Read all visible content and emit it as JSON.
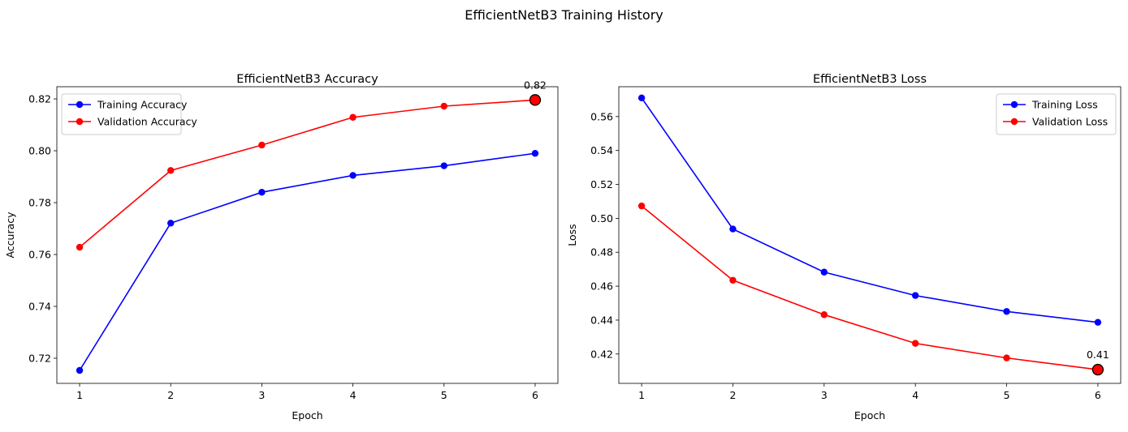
{
  "figure": {
    "title": "EfficientNetB3 Training History"
  },
  "chart_data": [
    {
      "type": "line",
      "title": "EfficientNetB3 Accuracy",
      "xlabel": "Epoch",
      "ylabel": "Accuracy",
      "x": [
        1,
        2,
        3,
        4,
        5,
        6
      ],
      "xticks": [
        "1",
        "2",
        "3",
        "4",
        "5",
        "6"
      ],
      "xlim": [
        0.75,
        6.25
      ],
      "ylim": [
        0.7103,
        0.8247
      ],
      "yticks": [
        "0.72",
        "0.74",
        "0.76",
        "0.78",
        "0.80",
        "0.82"
      ],
      "ytick_values": [
        0.72,
        0.74,
        0.76,
        0.78,
        0.8,
        0.82
      ],
      "legend": "top-left",
      "series": [
        {
          "name": "Training Accuracy",
          "color": "#0000ff",
          "values": [
            0.7153,
            0.7721,
            0.784,
            0.7905,
            0.7942,
            0.799
          ]
        },
        {
          "name": "Validation Accuracy",
          "color": "#ff0000",
          "values": [
            0.7628,
            0.7924,
            0.8022,
            0.8129,
            0.8172,
            0.8196
          ]
        }
      ],
      "highlight": {
        "series": 1,
        "index": 5,
        "label": "0.82"
      }
    },
    {
      "type": "line",
      "title": "EfficientNetB3 Loss",
      "xlabel": "Epoch",
      "ylabel": "Loss",
      "x": [
        1,
        2,
        3,
        4,
        5,
        6
      ],
      "xticks": [
        "1",
        "2",
        "3",
        "4",
        "5",
        "6"
      ],
      "xlim": [
        0.75,
        6.25
      ],
      "ylim": [
        0.4027,
        0.5776
      ],
      "yticks": [
        "0.42",
        "0.44",
        "0.46",
        "0.48",
        "0.50",
        "0.52",
        "0.54",
        "0.56"
      ],
      "ytick_values": [
        0.42,
        0.44,
        0.46,
        0.48,
        0.5,
        0.52,
        0.54,
        0.56
      ],
      "legend": "top-right",
      "series": [
        {
          "name": "Training Loss",
          "color": "#0000ff",
          "values": [
            0.571,
            0.4937,
            0.4683,
            0.4545,
            0.4451,
            0.4387
          ]
        },
        {
          "name": "Validation Loss",
          "color": "#ff0000",
          "values": [
            0.5073,
            0.4635,
            0.4432,
            0.4263,
            0.4177,
            0.4108
          ]
        }
      ],
      "highlight": {
        "series": 1,
        "index": 5,
        "label": "0.41"
      }
    }
  ]
}
